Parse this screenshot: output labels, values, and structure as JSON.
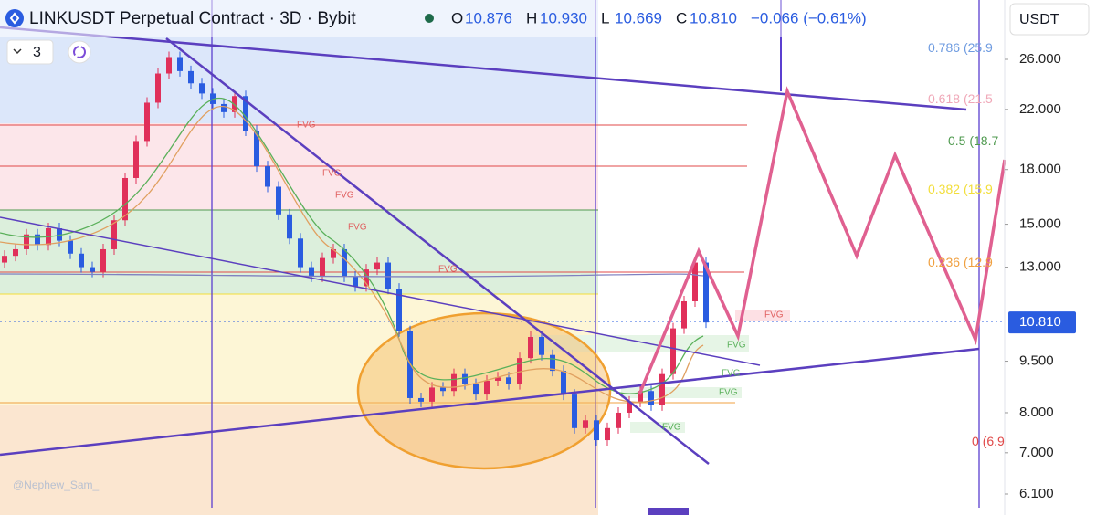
{
  "header": {
    "symbol": "LINKUSDT Perpetual Contract · 3D · Bybit",
    "ohlc": [
      {
        "key": "O",
        "value": "10.876"
      },
      {
        "key": "H",
        "value": "10.930"
      },
      {
        "key": "L",
        "value": "10.669"
      },
      {
        "key": "C",
        "value": "10.810"
      }
    ],
    "change": "−0.066 (−0.61%)"
  },
  "toolbar": {
    "indicator_count": "3",
    "currency": "USDT"
  },
  "watermark": "@Nephew_Sam_",
  "price_axis": {
    "log_scale": true,
    "ticks": [
      {
        "value": 26,
        "label": "26.000"
      },
      {
        "value": 22,
        "label": "22.000"
      },
      {
        "value": 18,
        "label": "18.000"
      },
      {
        "value": 15,
        "label": "15.000"
      },
      {
        "value": 13,
        "label": "13.000"
      },
      {
        "value": 9.5,
        "label": "9.500"
      },
      {
        "value": 8,
        "label": "8.000"
      },
      {
        "value": 7,
        "label": "7.000"
      },
      {
        "value": 6.1,
        "label": "6.100"
      }
    ],
    "last_price": {
      "value": 10.81,
      "label": "10.810"
    }
  },
  "fib_levels": [
    {
      "level": "0.786",
      "price": "(25.9",
      "color": "#6e9be0"
    },
    {
      "level": "0.618",
      "price": "(21.5",
      "color": "#f0a8b8"
    },
    {
      "level": "0.5",
      "price": "(18.7",
      "color": "#4f9a4f"
    },
    {
      "level": "0.382",
      "price": "(15.9",
      "color": "#f2de3a"
    },
    {
      "level": "0.236",
      "price": "(12.9",
      "color": "#f0a040"
    },
    {
      "level": "0",
      "price": "(6.9",
      "color": "#e04848"
    }
  ],
  "fvg_labels": [
    "FVG",
    "FVG",
    "FVG",
    "FVG",
    "FVG",
    "FVG",
    "FVG",
    "FVG",
    "FVG",
    "FVG"
  ],
  "candles": {
    "first_open": 13.2,
    "closes": [
      13.5,
      13.8,
      14.5,
      14.0,
      14.8,
      14.2,
      13.6,
      13.0,
      12.8,
      13.8,
      15.2,
      17.5,
      19.8,
      22.5,
      24.8,
      26.2,
      25.0,
      24.0,
      23.2,
      22.4,
      21.8,
      23.0,
      20.5,
      18.2,
      17.0,
      15.5,
      14.3,
      13.0,
      12.6,
      13.4,
      13.8,
      12.6,
      12.2,
      12.9,
      13.2,
      12.1,
      10.5,
      8.4,
      8.3,
      8.7,
      8.6,
      9.1,
      8.8,
      8.5,
      8.9,
      9.0,
      8.8,
      9.6,
      10.3,
      9.7,
      9.2,
      8.5,
      7.6,
      7.8,
      7.3,
      7.6,
      8.0,
      8.3,
      8.6,
      8.2,
      9.1,
      10.6,
      11.6,
      13.2,
      10.81
    ],
    "up_color": "#e0305a",
    "down_color": "#2a5ce0"
  }
}
